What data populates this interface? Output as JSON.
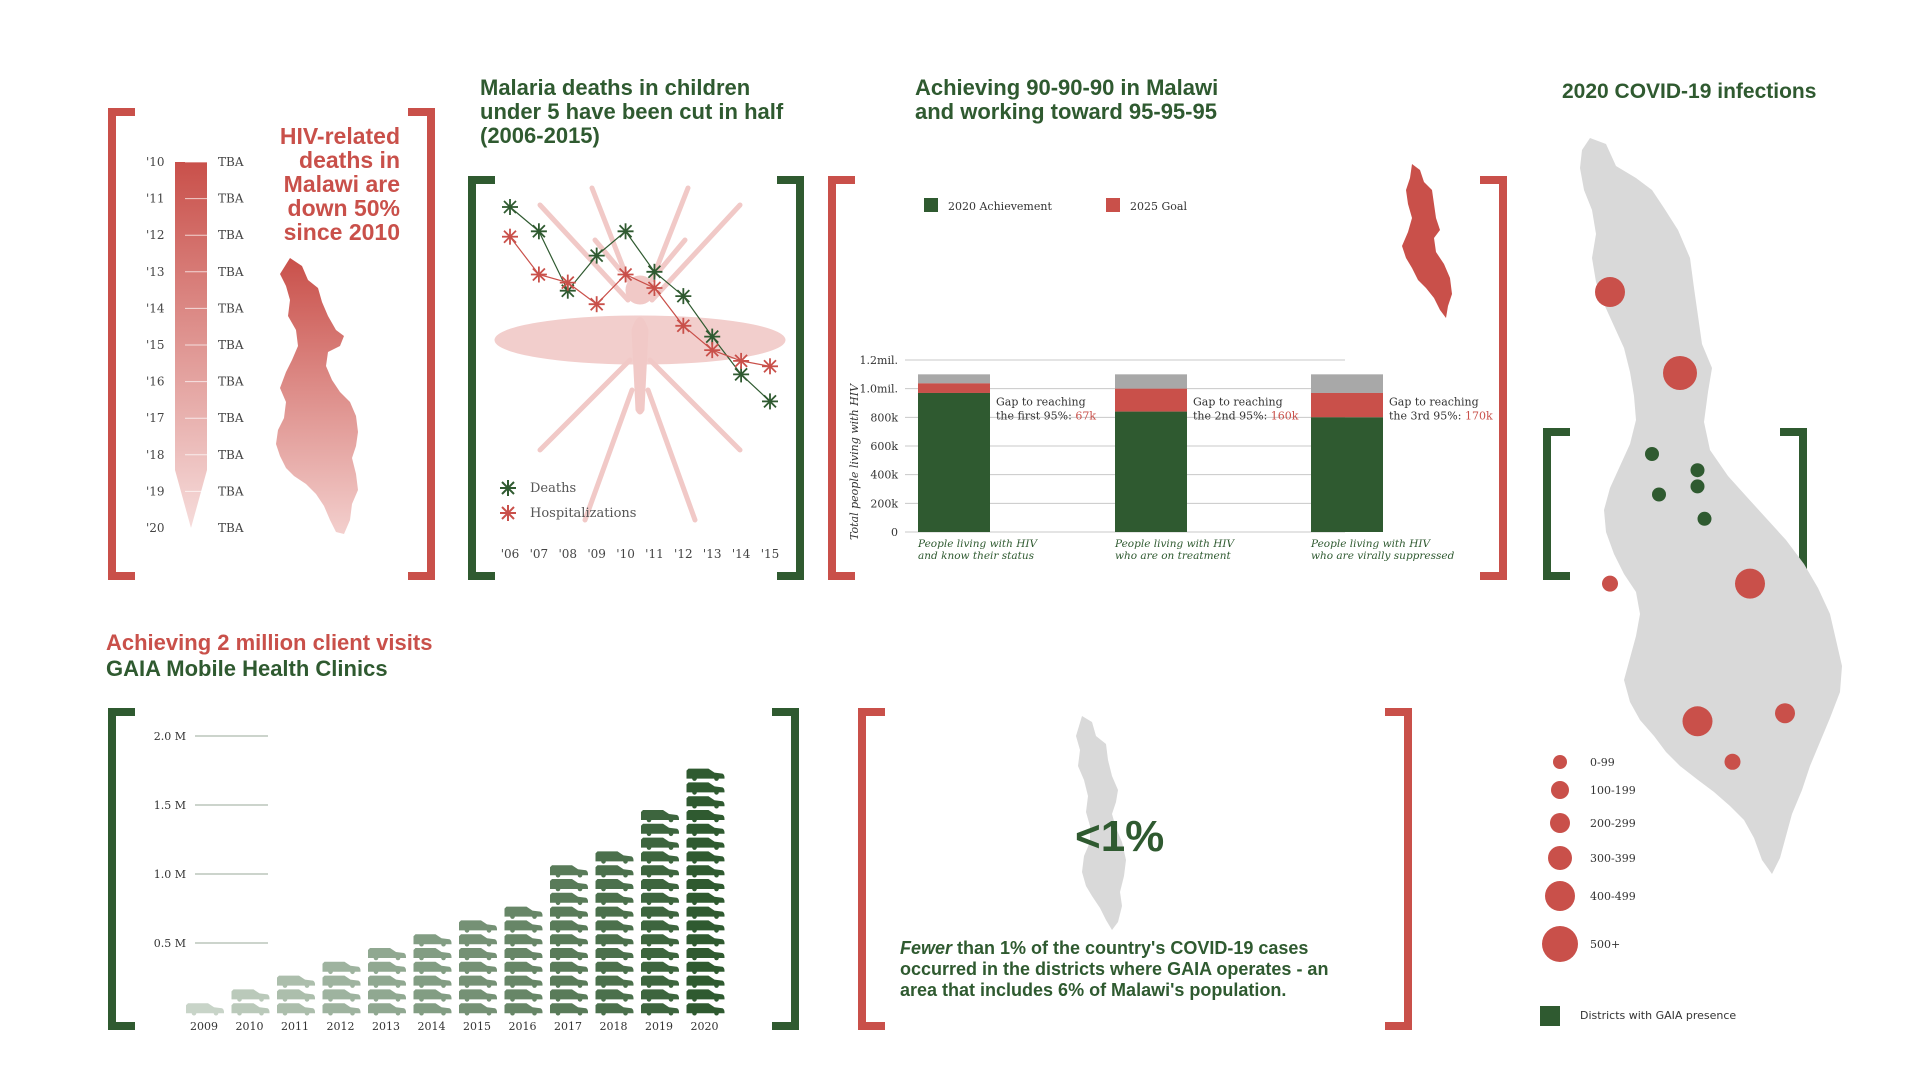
{
  "colors": {
    "green": "#2f5a30",
    "red": "#c9504a",
    "grey": "#a8a8a8",
    "pink": "#f1c9c7",
    "lightgrey": "#d9d9d9"
  },
  "hiv_panel": {
    "headline": [
      "HIV-related",
      "deaths in",
      "Malawi are",
      "down 50%",
      "since 2010"
    ],
    "chart_data": {
      "type": "table",
      "years": [
        "'10",
        "'11",
        "'12",
        "'13",
        "'14",
        "'15",
        "'16",
        "'17",
        "'18",
        "'19",
        "'20"
      ],
      "values": [
        "TBA",
        "TBA",
        "TBA",
        "TBA",
        "TBA",
        "TBA",
        "TBA",
        "TBA",
        "TBA",
        "TBA",
        "TBA"
      ]
    }
  },
  "malaria_panel": {
    "title": [
      "Malaria deaths in children",
      "under 5 have been cut in half",
      "(2006-2015)"
    ],
    "chart_data": {
      "type": "line",
      "x": [
        "'06",
        "'07",
        "'08",
        "'09",
        "'10",
        "'11",
        "'12",
        "'13",
        "'14",
        "'15"
      ],
      "ylim": [
        0,
        100
      ],
      "series": [
        {
          "name": "Deaths",
          "values": [
            90,
            81,
            59,
            72,
            81,
            66,
            57,
            42,
            28,
            18
          ]
        },
        {
          "name": "Hospitalizations",
          "values": [
            79,
            65,
            62,
            54,
            65,
            60,
            46,
            37,
            33,
            31
          ]
        }
      ]
    }
  },
  "hiv90_panel": {
    "title": [
      "Achieving 90-90-90 in Malawi",
      "and working toward 95-95-95"
    ],
    "chart_data": {
      "type": "bar",
      "legend": [
        "2020 Achievement",
        "2025 Goal"
      ],
      "ylabel": "Total people living with HIV",
      "ylim": [
        0,
        1200000
      ],
      "yticks": [
        "0",
        "200k",
        "400k",
        "600k",
        "800k",
        "1.0mil.",
        "1.2mil."
      ],
      "yticks_values": [
        0,
        200000,
        400000,
        600000,
        800000,
        1000000,
        1200000
      ],
      "total": 1100000,
      "categories": [
        [
          "People  living with HIV",
          "and know their status"
        ],
        [
          "People living with HIV",
          "who are on treatment"
        ],
        [
          "People living with HIV",
          "who are virally suppressed"
        ]
      ],
      "achievement": [
        970000,
        840000,
        800000
      ],
      "goal_gap": [
        67000,
        160000,
        170000
      ],
      "gap_labels": [
        {
          "line1": "Gap to reaching",
          "line2": "the first 95%: ",
          "value": "67k"
        },
        {
          "line1": "Gap to reaching",
          "line2": "the 2nd 95%: ",
          "value": "160k"
        },
        {
          "line1": "Gap to reaching",
          "line2": "the 3rd 95%: ",
          "value": "170k"
        }
      ]
    }
  },
  "visits_panel": {
    "title_red": "Achieving 2 million client visits",
    "title_green": "GAIA Mobile Health Clinics",
    "chart_data": {
      "type": "bar",
      "categories": [
        "2009",
        "2010",
        "2011",
        "2012",
        "2013",
        "2014",
        "2015",
        "2016",
        "2017",
        "2018",
        "2019",
        "2020"
      ],
      "values": [
        100000,
        200000,
        300000,
        400000,
        500000,
        600000,
        700000,
        800000,
        1100000,
        1200000,
        1500000,
        1800000
      ],
      "yticks": [
        "0.5 M",
        "1.0 M",
        "1.5 M",
        "2.0 M"
      ],
      "yticks_values": [
        500000,
        1000000,
        1500000,
        2000000
      ]
    }
  },
  "covid_share_panel": {
    "big_stat": "<1%",
    "text_em": "Fewer",
    "text_rest": " than 1% of the country's COVID-19 cases",
    "text_line2": "occurred in the districts where GAIA operates - an",
    "text_line3": "area that includes 6% of Malawi's population."
  },
  "covid_map_panel": {
    "title": "2020 COVID-19 infections",
    "legend": [
      "0-99",
      "100-199",
      "200-299",
      "300-399",
      "400-499",
      "500+"
    ],
    "gaia_legend": "Districts with GAIA presence",
    "chart_data": {
      "type": "scatter",
      "categories": [
        "0-99",
        "100-199",
        "200-299",
        "300-399",
        "400-499",
        "500+"
      ],
      "points": [
        {
          "x": 0.2,
          "y": 0.2,
          "class": "300-399"
        },
        {
          "x": 0.4,
          "y": 0.3,
          "class": "400-499"
        },
        {
          "x": 0.6,
          "y": 0.56,
          "class": "300-399"
        },
        {
          "x": 0.2,
          "y": 0.56,
          "class": "0-99"
        },
        {
          "x": 0.45,
          "y": 0.73,
          "class": "300-399"
        },
        {
          "x": 0.7,
          "y": 0.72,
          "class": "200-299"
        },
        {
          "x": 0.55,
          "y": 0.78,
          "class": "0-99"
        }
      ],
      "gaia_points": [
        {
          "x": 0.32,
          "y": 0.4
        },
        {
          "x": 0.34,
          "y": 0.45
        },
        {
          "x": 0.45,
          "y": 0.42
        },
        {
          "x": 0.45,
          "y": 0.44
        },
        {
          "x": 0.47,
          "y": 0.48
        }
      ]
    }
  }
}
